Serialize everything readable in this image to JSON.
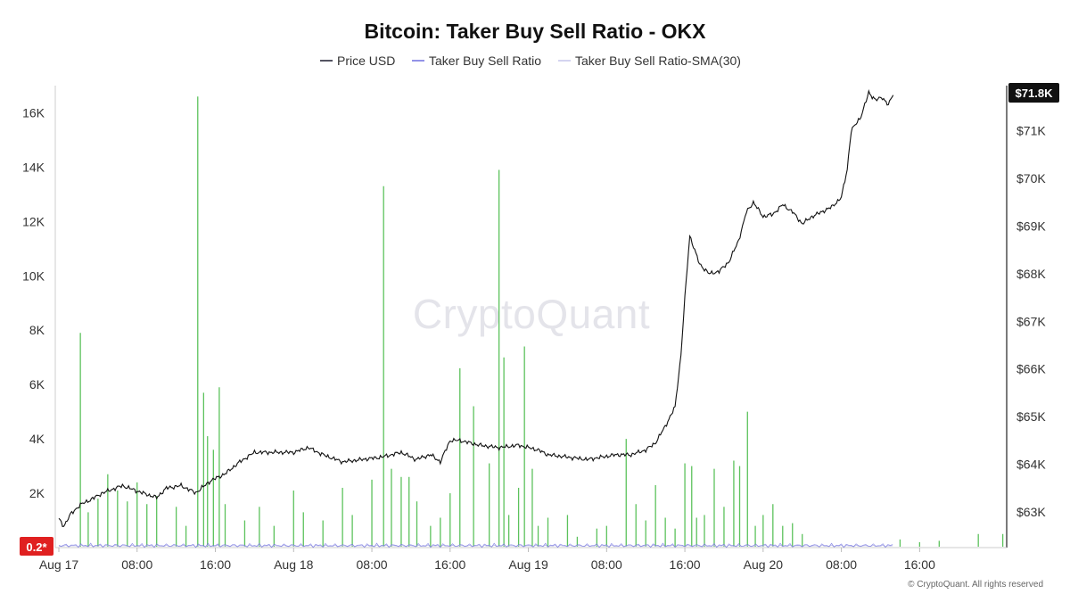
{
  "chart_data": {
    "type": "line",
    "title": "Bitcoin: Taker Buy Sell Ratio - OKX",
    "watermark": "CryptoQuant",
    "copyright": "© CryptoQuant. All rights reserved",
    "legend": [
      {
        "name": "Price USD",
        "color": "#1a1a2e"
      },
      {
        "name": "Taker Buy Sell Ratio",
        "color": "#6f6fe0"
      },
      {
        "name": "Taker Buy Sell Ratio-SMA(30)",
        "color": "#b8b8e6"
      }
    ],
    "x_ticks": [
      "Aug 17",
      "08:00",
      "16:00",
      "Aug 18",
      "08:00",
      "16:00",
      "Aug 19",
      "08:00",
      "16:00",
      "Aug 20",
      "08:00",
      "16:00"
    ],
    "x_range_hours": [
      0,
      88
    ],
    "left_axis": {
      "ticks": [
        "2K",
        "4K",
        "6K",
        "8K",
        "10K",
        "12K",
        "14K",
        "16K"
      ],
      "values": [
        2000,
        4000,
        6000,
        8000,
        10000,
        12000,
        14000,
        16000
      ],
      "range": [
        0,
        17000
      ]
    },
    "right_axis": {
      "ticks": [
        "$63K",
        "$64K",
        "$65K",
        "$66K",
        "$67K",
        "$68K",
        "$69K",
        "$70K",
        "$71K"
      ],
      "values": [
        63000,
        64000,
        65000,
        66000,
        67000,
        68000,
        69000,
        70000,
        71000
      ],
      "range": [
        62250,
        71950
      ]
    },
    "left_badge": {
      "text": "0.2*",
      "value": 0.2,
      "color": "#e02020"
    },
    "right_badge": {
      "text": "$71.8K",
      "value": 71800,
      "color": "#111111"
    },
    "green_bars_color": "#5cc25c",
    "price_keypoints": [
      [
        0.0,
        62850
      ],
      [
        0.5,
        62700
      ],
      [
        1.2,
        62950
      ],
      [
        2.2,
        63150
      ],
      [
        3.2,
        63250
      ],
      [
        4.5,
        63400
      ],
      [
        6.5,
        63550
      ],
      [
        8.5,
        63400
      ],
      [
        10.0,
        63300
      ],
      [
        11.0,
        63500
      ],
      [
        12.5,
        63550
      ],
      [
        14.0,
        63400
      ],
      [
        15.5,
        63650
      ],
      [
        17.0,
        63800
      ],
      [
        18.5,
        64050
      ],
      [
        20.0,
        64250
      ],
      [
        22.0,
        64250
      ],
      [
        24.0,
        64250
      ],
      [
        25.5,
        64350
      ],
      [
        27.0,
        64200
      ],
      [
        29.0,
        64050
      ],
      [
        31.0,
        64100
      ],
      [
        33.0,
        64150
      ],
      [
        35.0,
        64250
      ],
      [
        36.5,
        64100
      ],
      [
        38.0,
        64200
      ],
      [
        39.0,
        64050
      ],
      [
        40.0,
        64500
      ],
      [
        41.0,
        64500
      ],
      [
        43.0,
        64400
      ],
      [
        45.0,
        64350
      ],
      [
        47.0,
        64400
      ],
      [
        49.0,
        64300
      ],
      [
        50.0,
        64200
      ],
      [
        52.0,
        64150
      ],
      [
        54.0,
        64100
      ],
      [
        55.5,
        64150
      ],
      [
        57.0,
        64200
      ],
      [
        58.5,
        64200
      ],
      [
        60.0,
        64300
      ],
      [
        61.0,
        64450
      ],
      [
        62.0,
        64800
      ],
      [
        63.0,
        65200
      ],
      [
        63.6,
        66300
      ],
      [
        64.0,
        67500
      ],
      [
        64.5,
        68800
      ],
      [
        65.5,
        68200
      ],
      [
        66.5,
        68000
      ],
      [
        67.5,
        68050
      ],
      [
        68.5,
        68250
      ],
      [
        69.5,
        68700
      ],
      [
        70.3,
        69300
      ],
      [
        71.0,
        69500
      ],
      [
        72.0,
        69200
      ],
      [
        73.0,
        69250
      ],
      [
        74.0,
        69450
      ],
      [
        75.0,
        69300
      ],
      [
        76.0,
        69050
      ],
      [
        77.0,
        69200
      ],
      [
        78.0,
        69300
      ],
      [
        79.0,
        69400
      ],
      [
        80.0,
        69600
      ],
      [
        80.6,
        70200
      ],
      [
        81.0,
        71000
      ],
      [
        82.0,
        71300
      ],
      [
        82.8,
        71800
      ],
      [
        83.5,
        71650
      ],
      [
        84.2,
        71700
      ],
      [
        84.8,
        71550
      ],
      [
        85.3,
        71750
      ]
    ],
    "green_bars": [
      [
        2.2,
        7900
      ],
      [
        3.0,
        1300
      ],
      [
        4.0,
        1800
      ],
      [
        5.0,
        2700
      ],
      [
        6.0,
        2100
      ],
      [
        7.0,
        1700
      ],
      [
        8.0,
        2400
      ],
      [
        9.0,
        1600
      ],
      [
        10.0,
        1900
      ],
      [
        12.0,
        1500
      ],
      [
        13.0,
        800
      ],
      [
        14.2,
        16600
      ],
      [
        14.8,
        5700
      ],
      [
        15.2,
        4100
      ],
      [
        15.8,
        3600
      ],
      [
        16.4,
        5900
      ],
      [
        17.0,
        1600
      ],
      [
        19.0,
        1000
      ],
      [
        20.5,
        1500
      ],
      [
        22.0,
        800
      ],
      [
        24.0,
        2100
      ],
      [
        25.0,
        1300
      ],
      [
        27.0,
        1000
      ],
      [
        29.0,
        2200
      ],
      [
        30.0,
        1200
      ],
      [
        32.0,
        2500
      ],
      [
        33.2,
        13300
      ],
      [
        34.0,
        2900
      ],
      [
        35.0,
        2600
      ],
      [
        35.8,
        2600
      ],
      [
        36.6,
        1700
      ],
      [
        38.0,
        800
      ],
      [
        39.0,
        1100
      ],
      [
        40.0,
        2000
      ],
      [
        41.0,
        6600
      ],
      [
        42.4,
        5200
      ],
      [
        44.0,
        3100
      ],
      [
        45.0,
        13900
      ],
      [
        45.5,
        7000
      ],
      [
        46.0,
        1200
      ],
      [
        47.0,
        2200
      ],
      [
        47.6,
        7400
      ],
      [
        48.4,
        2900
      ],
      [
        49.0,
        800
      ],
      [
        50.0,
        1100
      ],
      [
        52.0,
        1200
      ],
      [
        53.0,
        400
      ],
      [
        55.0,
        700
      ],
      [
        56.0,
        800
      ],
      [
        58.0,
        4000
      ],
      [
        59.0,
        1600
      ],
      [
        60.0,
        1000
      ],
      [
        61.0,
        2300
      ],
      [
        62.0,
        1100
      ],
      [
        63.0,
        700
      ],
      [
        64.0,
        3100
      ],
      [
        64.7,
        3000
      ],
      [
        65.2,
        1100
      ],
      [
        66.0,
        1200
      ],
      [
        67.0,
        2900
      ],
      [
        68.0,
        1500
      ],
      [
        69.0,
        3200
      ],
      [
        69.6,
        3000
      ],
      [
        70.4,
        5000
      ],
      [
        71.2,
        800
      ],
      [
        72.0,
        1200
      ],
      [
        73.0,
        1600
      ],
      [
        74.0,
        800
      ],
      [
        75.0,
        900
      ],
      [
        76.0,
        500
      ],
      [
        86.0,
        300
      ],
      [
        88.0,
        200
      ],
      [
        90.0,
        250
      ],
      [
        94.0,
        500
      ],
      [
        96.5,
        500
      ]
    ]
  }
}
